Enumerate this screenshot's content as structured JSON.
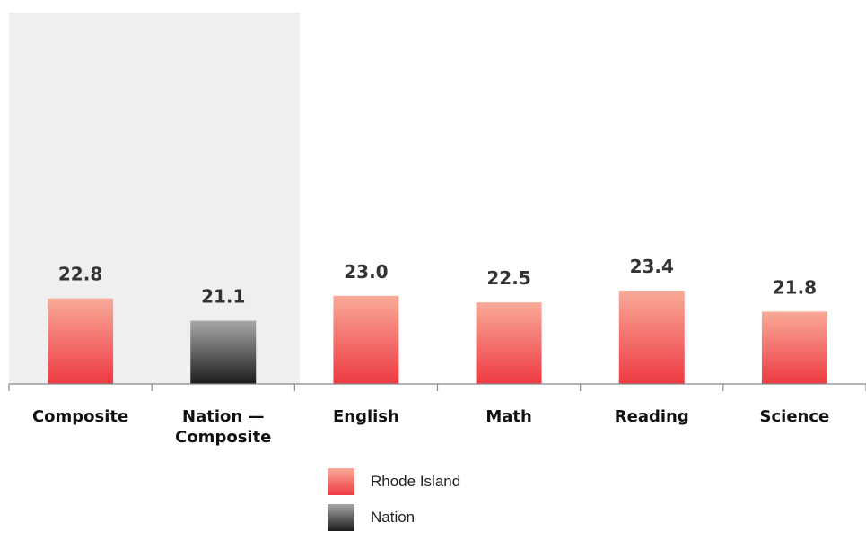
{
  "chart_data": {
    "type": "bar",
    "categories": [
      "Composite",
      "Nation —\nComposite",
      "English",
      "Math",
      "Reading",
      "Science"
    ],
    "values": [
      22.8,
      21.1,
      23.0,
      22.5,
      23.4,
      21.8
    ],
    "value_labels": [
      "22.8",
      "21.1",
      "23.0",
      "22.5",
      "23.4",
      "21.8"
    ],
    "series_for_category": [
      "Rhode Island",
      "Nation",
      "Rhode Island",
      "Rhode Island",
      "Rhode Island",
      "Rhode Island"
    ],
    "highlighted_categories": [
      "Composite",
      "Nation —\nComposite"
    ],
    "title": "",
    "xlabel": "",
    "ylabel": "",
    "ylim": [
      0,
      27
    ],
    "grid": false,
    "legend_placement": "bottom-center"
  },
  "legend": [
    {
      "name": "Rhode Island",
      "color_top": "#f9aa98",
      "color_bottom": "#ee3a42"
    },
    {
      "name": "Nation",
      "color_top": "#a7a7aa",
      "color_bottom": "#1e1b1d"
    }
  ],
  "colors": {
    "highlight_background": "#efefef",
    "axis": "#888888"
  }
}
